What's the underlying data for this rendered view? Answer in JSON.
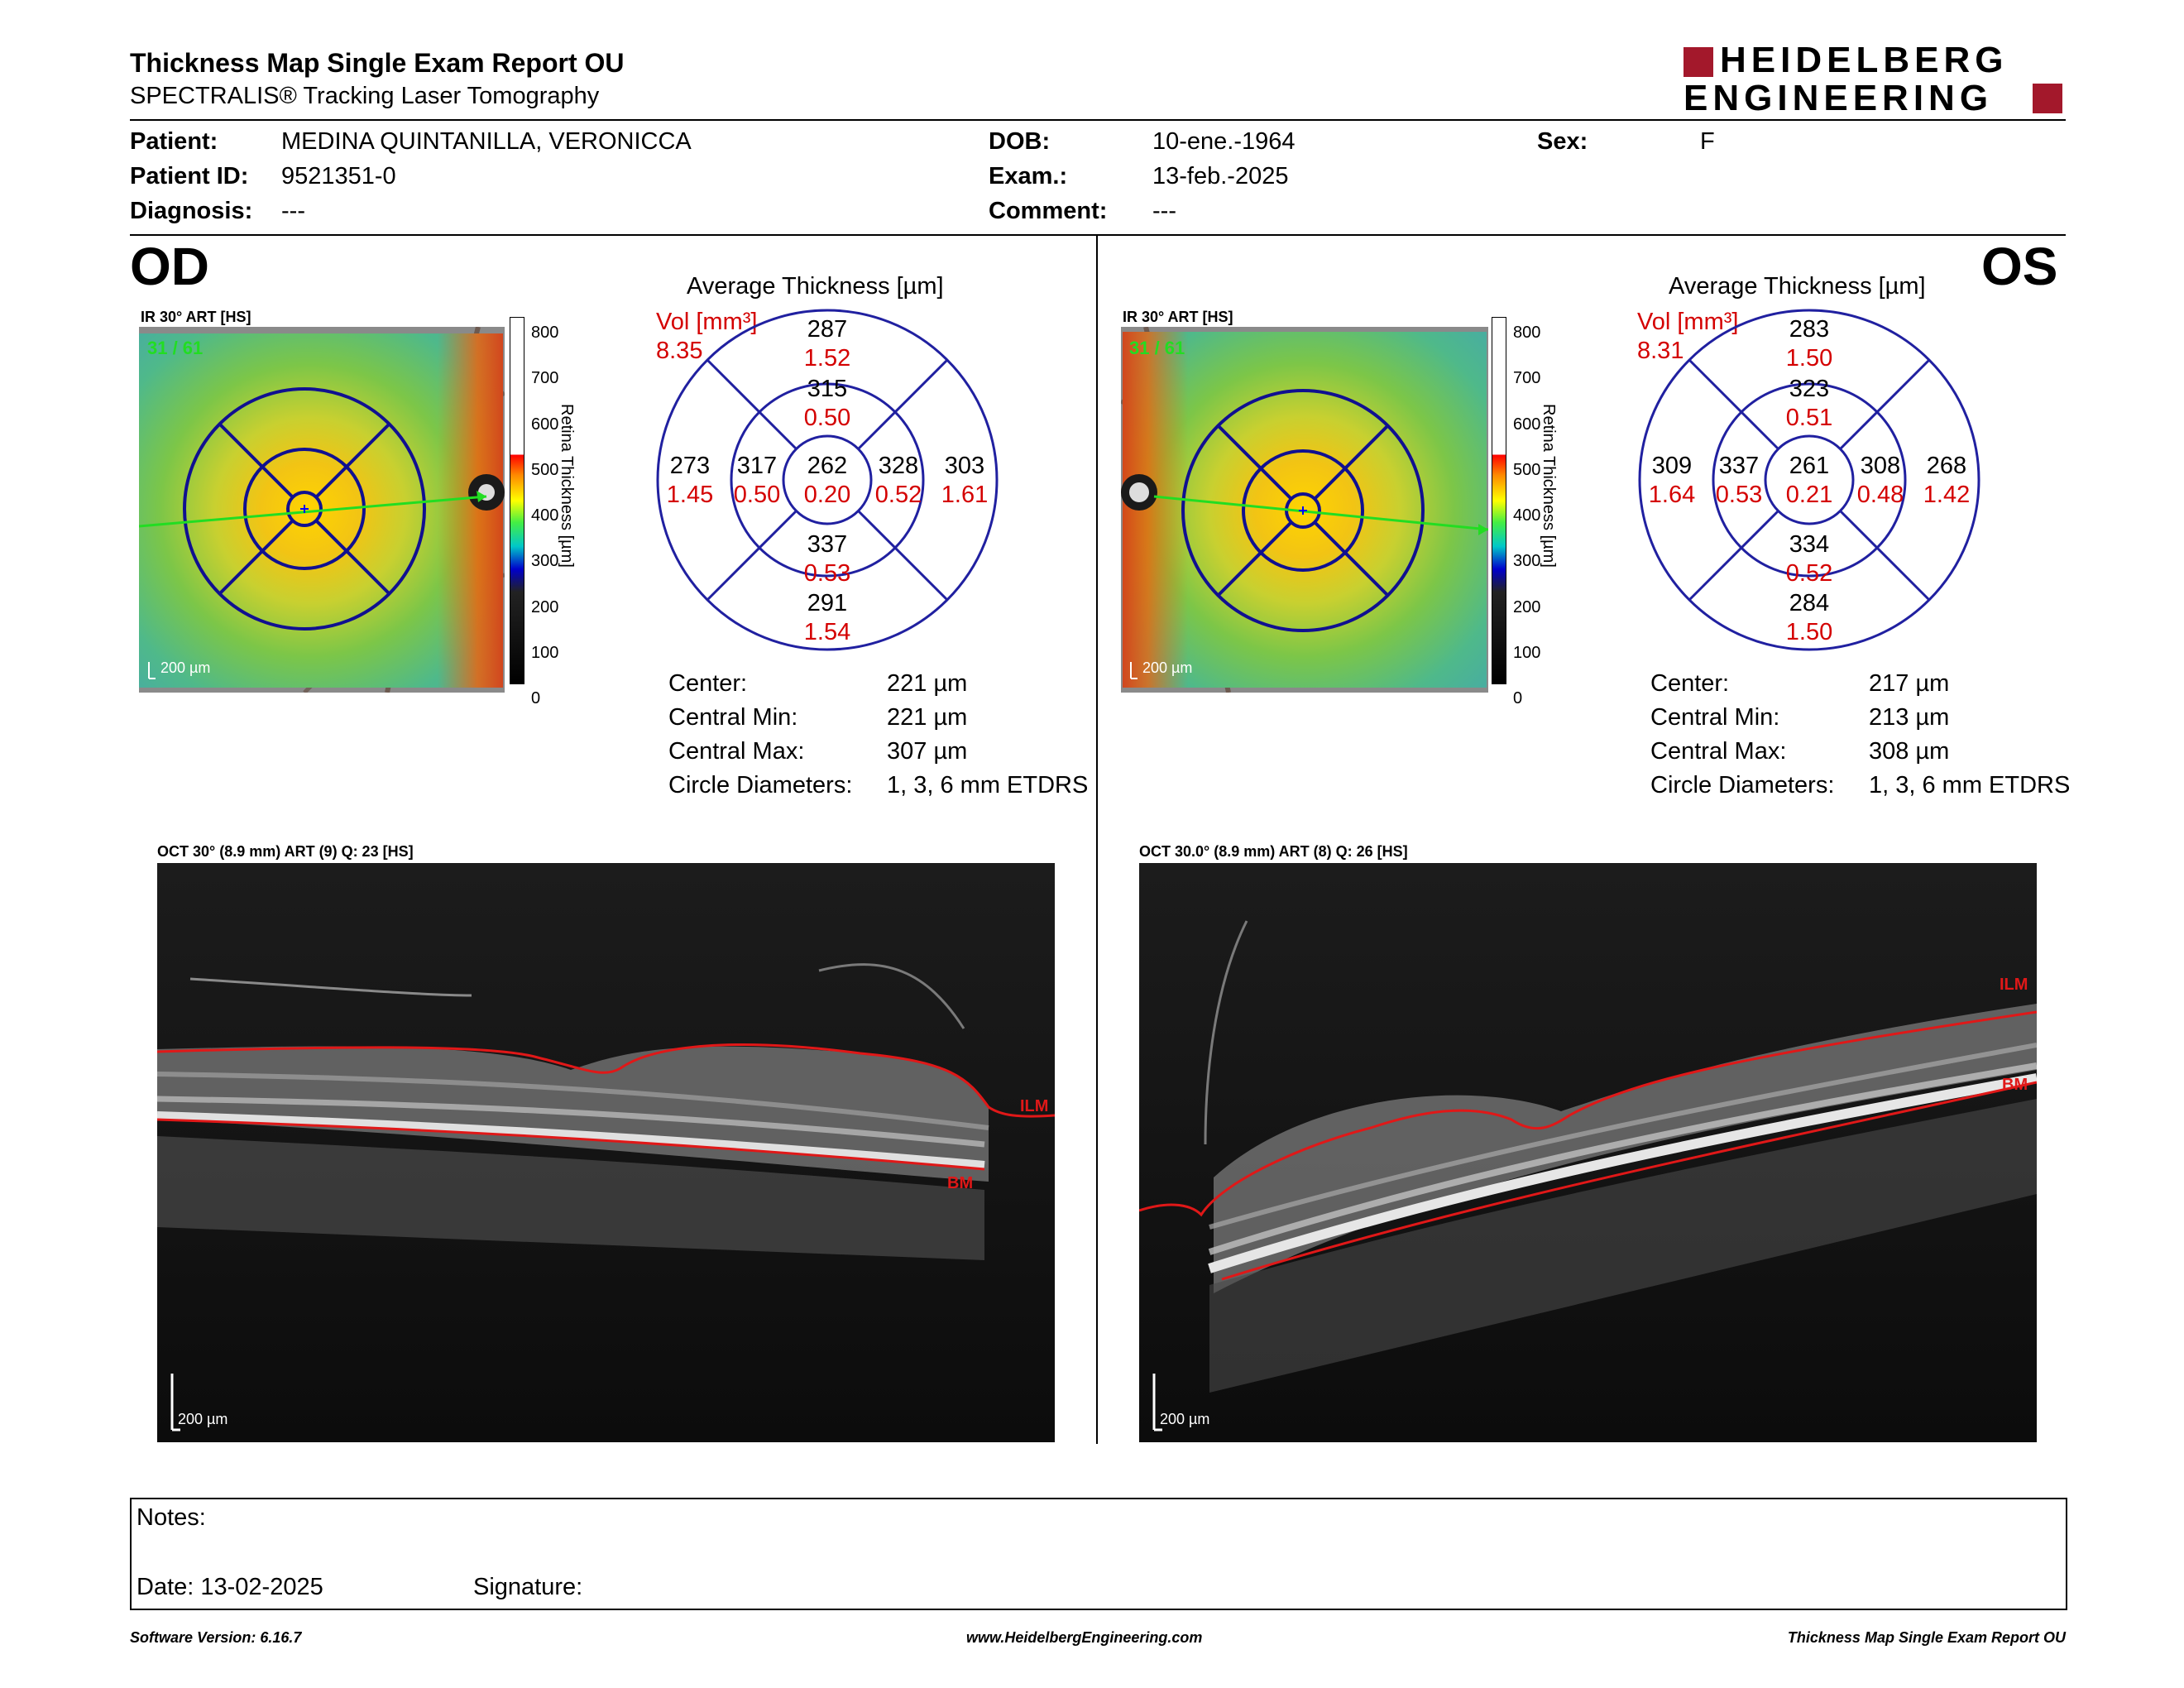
{
  "report": {
    "title": "Thickness Map Single Exam Report OU",
    "subtitle": "SPECTRALIS® Tracking Laser Tomography",
    "logo_line1": "HEIDELBERG",
    "logo_line2": "ENGINEERING",
    "brand_color": "#a3182b"
  },
  "patient": {
    "patient_label": "Patient:",
    "patient_value": "MEDINA QUINTANILLA, VERONICCA",
    "id_label": "Patient ID:",
    "id_value": "9521351-0",
    "diagnosis_label": "Diagnosis:",
    "diagnosis_value": "---",
    "dob_label": "DOB:",
    "dob_value": "10-ene.-1964",
    "exam_label": "Exam.:",
    "exam_value": "13-feb.-2025",
    "comment_label": "Comment:",
    "comment_value": "---",
    "sex_label": "Sex:",
    "sex_value": "F"
  },
  "od": {
    "eye": "OD",
    "ir_label": "IR 30° ART [HS]",
    "frame": "31 / 61",
    "scale": "200 µm",
    "avg_title": "Average Thickness [µm]",
    "vol_label": "Vol [mm³]",
    "vol_total": "8.35",
    "grid": {
      "center": {
        "t": "262",
        "v": "0.20"
      },
      "inner_sup": {
        "t": "315",
        "v": "0.50"
      },
      "inner_inf": {
        "t": "337",
        "v": "0.53"
      },
      "inner_left": {
        "t": "317",
        "v": "0.50"
      },
      "inner_right": {
        "t": "328",
        "v": "0.52"
      },
      "outer_sup": {
        "t": "287",
        "v": "1.52"
      },
      "outer_inf": {
        "t": "291",
        "v": "1.54"
      },
      "outer_left": {
        "t": "273",
        "v": "1.45"
      },
      "outer_right": {
        "t": "303",
        "v": "1.61"
      }
    },
    "stats": {
      "center_label": "Center:",
      "center": "221 µm",
      "min_label": "Central Min:",
      "min": "221 µm",
      "max_label": "Central Max:",
      "max": "307 µm",
      "diam_label": "Circle Diameters:",
      "diam": "1, 3, 6 mm ETDRS"
    },
    "oct_label": "OCT 30° (8.9 mm) ART (9) Q: 23 [HS]",
    "oct_scale": "200 µm",
    "ilm": "ILM",
    "bm": "BM"
  },
  "os": {
    "eye": "OS",
    "ir_label": "IR 30° ART [HS]",
    "frame": "31 / 61",
    "scale": "200 µm",
    "avg_title": "Average Thickness [µm]",
    "vol_label": "Vol [mm³]",
    "vol_total": "8.31",
    "grid": {
      "center": {
        "t": "261",
        "v": "0.21"
      },
      "inner_sup": {
        "t": "323",
        "v": "0.51"
      },
      "inner_inf": {
        "t": "334",
        "v": "0.52"
      },
      "inner_left": {
        "t": "337",
        "v": "0.53"
      },
      "inner_right": {
        "t": "308",
        "v": "0.48"
      },
      "outer_sup": {
        "t": "283",
        "v": "1.50"
      },
      "outer_inf": {
        "t": "284",
        "v": "1.50"
      },
      "outer_left": {
        "t": "309",
        "v": "1.64"
      },
      "outer_right": {
        "t": "268",
        "v": "1.42"
      }
    },
    "stats": {
      "center_label": "Center:",
      "center": "217 µm",
      "min_label": "Central Min:",
      "min": "213 µm",
      "max_label": "Central Max:",
      "max": "308 µm",
      "diam_label": "Circle Diameters:",
      "diam": "1, 3, 6 mm ETDRS"
    },
    "oct_label": "OCT 30.0° (8.9 mm) ART (8) Q: 26 [HS]",
    "oct_scale": "200 µm",
    "ilm": "ILM",
    "bm": "BM"
  },
  "colorbar": {
    "ticks": [
      "800",
      "700",
      "600",
      "500",
      "400",
      "300",
      "200",
      "100",
      "0"
    ],
    "title": "Retina Thickness [µm]"
  },
  "notes": {
    "notes_label": "Notes:",
    "date_label": "Date: 13-02-2025",
    "signature_label": "Signature:"
  },
  "footer": {
    "left": "Software Version: 6.16.7",
    "center": "www.HeidelbergEngineering.com",
    "right": "Thickness Map Single Exam Report OU"
  }
}
